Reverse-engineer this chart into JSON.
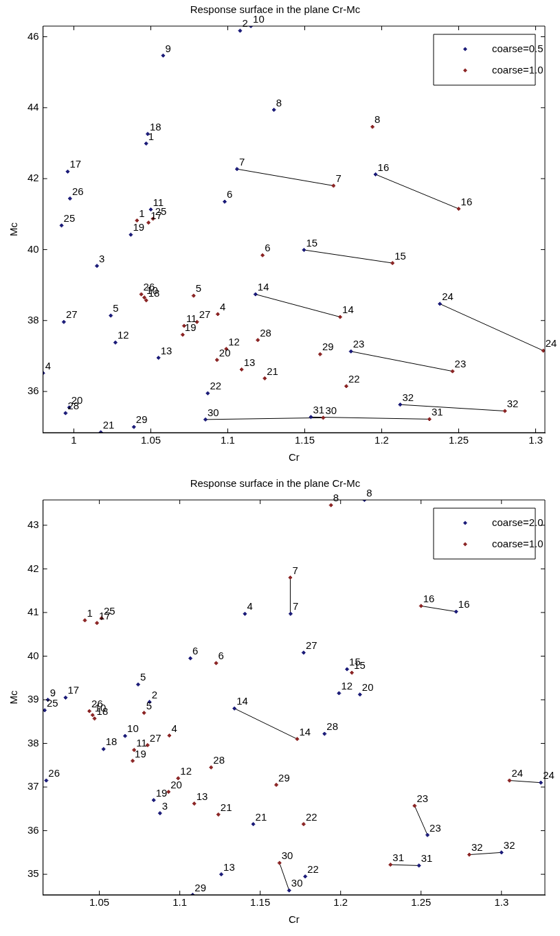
{
  "chart_data": [
    {
      "type": "scatter",
      "title": "Response surface in the plane Cr-Mc",
      "xlabel": "Cr",
      "ylabel": "Mc",
      "xlim": [
        0.98,
        1.306
      ],
      "ylim": [
        34.84,
        46.3
      ],
      "xticks": [
        1,
        1.05,
        1.1,
        1.15,
        1.2,
        1.25,
        1.3
      ],
      "yticks": [
        36,
        38,
        40,
        42,
        44,
        46
      ],
      "legend": "top right",
      "marker": "diamond",
      "series": [
        {
          "name": "coarse=0.5",
          "color": "#1b1b78",
          "x": [
            1.108,
            1.115,
            1.058,
            1.13,
            1.048,
            1.047,
            0.996,
            1.106,
            0.9975,
            1.098,
            1.05,
            0.992,
            1.037,
            1.015,
            1.024,
            0.9935,
            1.027,
            1.055,
            0.98,
            1.118,
            0.997,
            0.9946,
            1.0175,
            1.039,
            1.0855,
            1.087,
            1.154,
            1.212,
            1.1495,
            1.196,
            1.2378,
            1.18
          ],
          "values": [
            46.17,
            46.3,
            45.47,
            43.94,
            43.26,
            42.99,
            42.2,
            42.27,
            41.44,
            41.35,
            41.13,
            40.68,
            40.42,
            39.54,
            38.14,
            37.96,
            37.38,
            36.95,
            36.52,
            38.74,
            35.55,
            35.39,
            34.85,
            35.0,
            35.21,
            35.95,
            35.28,
            35.63,
            39.99,
            42.12,
            38.47,
            37.13
          ]
        },
        {
          "name": "coarse=1.0",
          "color": "#8b2525",
          "x": [
            1.194,
            1.1687,
            1.25,
            1.1226,
            1.207,
            1.173,
            1.305,
            1.246,
            1.16,
            1.177,
            1.124,
            1.1195,
            1.109,
            1.099,
            1.093,
            1.0935,
            1.0778,
            1.08,
            1.0716,
            1.0707,
            1.0438,
            1.0458,
            1.047,
            1.041,
            1.0485,
            1.0514,
            1.162,
            1.231,
            1.28
          ],
          "values": [
            43.46,
            41.8,
            41.15,
            39.84,
            39.62,
            38.1,
            37.15,
            36.57,
            37.05,
            36.15,
            36.37,
            37.45,
            36.62,
            37.2,
            36.89,
            38.18,
            38.7,
            37.96,
            37.85,
            37.6,
            38.74,
            38.65,
            38.57,
            40.82,
            40.76,
            40.87,
            35.26,
            35.22,
            35.45
          ]
        },
        {
          "type": "line",
          "marker": "none",
          "color": "#000000",
          "x": [
            1.106,
            1.1687
          ],
          "values": [
            42.27,
            41.8
          ]
        },
        {
          "type": "line",
          "marker": "none",
          "color": "#000000",
          "x": [
            1.196,
            1.25
          ],
          "values": [
            42.12,
            41.15
          ]
        },
        {
          "type": "line",
          "marker": "none",
          "color": "#000000",
          "x": [
            1.1495,
            1.207
          ],
          "values": [
            39.99,
            39.62
          ]
        },
        {
          "type": "line",
          "marker": "none",
          "color": "#000000",
          "x": [
            1.118,
            1.173
          ],
          "values": [
            38.74,
            38.1
          ]
        },
        {
          "type": "line",
          "marker": "none",
          "color": "#000000",
          "x": [
            1.2378,
            1.305
          ],
          "values": [
            38.47,
            37.15
          ]
        },
        {
          "type": "line",
          "marker": "none",
          "color": "#000000",
          "x": [
            1.18,
            1.246
          ],
          "values": [
            37.13,
            36.57
          ]
        },
        {
          "type": "line",
          "marker": "none",
          "color": "#000000",
          "x": [
            1.212,
            1.28
          ],
          "values": [
            35.63,
            35.45
          ]
        },
        {
          "type": "line",
          "marker": "none",
          "color": "#000000",
          "x": [
            1.0855,
            1.162
          ],
          "values": [
            35.21,
            35.26
          ]
        },
        {
          "type": "line",
          "marker": "none",
          "color": "#000000",
          "x": [
            1.154,
            1.231
          ],
          "values": [
            35.28,
            35.22
          ]
        }
      ],
      "annotations": [
        {
          "text": "2",
          "x": 1.108,
          "y": 46.17
        },
        {
          "text": "10",
          "x": 1.115,
          "y": 46.3
        },
        {
          "text": "9",
          "x": 1.058,
          "y": 45.47
        },
        {
          "text": "8",
          "x": 1.13,
          "y": 43.94
        },
        {
          "text": "18",
          "x": 1.048,
          "y": 43.26
        },
        {
          "text": "1",
          "x": 1.047,
          "y": 42.99
        },
        {
          "text": "17",
          "x": 0.996,
          "y": 42.2
        },
        {
          "text": "7",
          "x": 1.106,
          "y": 42.27
        },
        {
          "text": "26",
          "x": 0.9975,
          "y": 41.44
        },
        {
          "text": "6",
          "x": 1.098,
          "y": 41.35
        },
        {
          "text": "11",
          "x": 1.05,
          "y": 41.13
        },
        {
          "text": "25",
          "x": 0.992,
          "y": 40.68
        },
        {
          "text": "19",
          "x": 1.037,
          "y": 40.42
        },
        {
          "text": "3",
          "x": 1.015,
          "y": 39.54
        },
        {
          "text": "5",
          "x": 1.024,
          "y": 38.14
        },
        {
          "text": "27",
          "x": 0.9935,
          "y": 37.96
        },
        {
          "text": "12",
          "x": 1.027,
          "y": 37.38
        },
        {
          "text": "13",
          "x": 1.055,
          "y": 36.95
        },
        {
          "text": "4",
          "x": 0.98,
          "y": 36.52
        },
        {
          "text": "14",
          "x": 1.118,
          "y": 38.74
        },
        {
          "text": "20",
          "x": 0.997,
          "y": 35.55
        },
        {
          "text": "28",
          "x": 0.9946,
          "y": 35.39
        },
        {
          "text": "21",
          "x": 1.0175,
          "y": 34.85
        },
        {
          "text": "29",
          "x": 1.039,
          "y": 35.0
        },
        {
          "text": "30",
          "x": 1.0855,
          "y": 35.21
        },
        {
          "text": "22",
          "x": 1.087,
          "y": 35.95
        },
        {
          "text": "31",
          "x": 1.154,
          "y": 35.28
        },
        {
          "text": "32",
          "x": 1.212,
          "y": 35.63
        },
        {
          "text": "15",
          "x": 1.1495,
          "y": 39.99
        },
        {
          "text": "16",
          "x": 1.196,
          "y": 42.12
        },
        {
          "text": "24",
          "x": 1.2378,
          "y": 38.47
        },
        {
          "text": "23",
          "x": 1.18,
          "y": 37.13
        },
        {
          "text": "8",
          "x": 1.194,
          "y": 43.46
        },
        {
          "text": "7",
          "x": 1.1687,
          "y": 41.8
        },
        {
          "text": "16",
          "x": 1.25,
          "y": 41.15
        },
        {
          "text": "6",
          "x": 1.1226,
          "y": 39.84
        },
        {
          "text": "15",
          "x": 1.207,
          "y": 39.62
        },
        {
          "text": "14",
          "x": 1.173,
          "y": 38.1
        },
        {
          "text": "24",
          "x": 1.305,
          "y": 37.15
        },
        {
          "text": "23",
          "x": 1.246,
          "y": 36.57
        },
        {
          "text": "29",
          "x": 1.16,
          "y": 37.05
        },
        {
          "text": "22",
          "x": 1.177,
          "y": 36.15
        },
        {
          "text": "21",
          "x": 1.124,
          "y": 36.37
        },
        {
          "text": "28",
          "x": 1.1195,
          "y": 37.45
        },
        {
          "text": "13",
          "x": 1.109,
          "y": 36.62
        },
        {
          "text": "12",
          "x": 1.099,
          "y": 37.2
        },
        {
          "text": "20",
          "x": 1.093,
          "y": 36.89
        },
        {
          "text": "4",
          "x": 1.0935,
          "y": 38.18
        },
        {
          "text": "5",
          "x": 1.0778,
          "y": 38.7
        },
        {
          "text": "27",
          "x": 1.08,
          "y": 37.96
        },
        {
          "text": "11",
          "x": 1.0716,
          "y": 37.85
        },
        {
          "text": "19",
          "x": 1.0707,
          "y": 37.6
        },
        {
          "text": "26",
          "x": 1.0438,
          "y": 38.74
        },
        {
          "text": "10",
          "x": 1.0458,
          "y": 38.65
        },
        {
          "text": "18",
          "x": 1.047,
          "y": 38.57
        },
        {
          "text": "1",
          "x": 1.041,
          "y": 40.82
        },
        {
          "text": "17",
          "x": 1.0485,
          "y": 40.76
        },
        {
          "text": "25",
          "x": 1.0514,
          "y": 40.87
        },
        {
          "text": "30",
          "x": 1.162,
          "y": 35.26
        },
        {
          "text": "31",
          "x": 1.231,
          "y": 35.22
        },
        {
          "text": "32",
          "x": 1.28,
          "y": 35.45
        }
      ]
    },
    {
      "type": "scatter",
      "title": "Response surface in the plane Cr-Mc",
      "xlabel": "Cr",
      "ylabel": "Mc",
      "xlim": [
        1.015,
        1.327
      ],
      "ylim": [
        34.53,
        43.58
      ],
      "xticks": [
        1.05,
        1.1,
        1.15,
        1.2,
        1.25,
        1.3
      ],
      "yticks": [
        35,
        36,
        37,
        38,
        39,
        40,
        41,
        42,
        43
      ],
      "legend": "top right",
      "marker": "diamond",
      "series": [
        {
          "name": "coarse=2.0",
          "color": "#1b1b78",
          "x": [
            1.2148,
            1.1689,
            1.2718,
            1.177,
            1.204,
            1.1405,
            1.1066,
            1.0741,
            1.018,
            1.029,
            1.016,
            1.017,
            1.066,
            1.0526,
            1.0812,
            1.0838,
            1.0877,
            1.134,
            1.19,
            1.199,
            1.212,
            1.1457,
            1.178,
            1.1258,
            1.108,
            1.168,
            1.2487,
            1.3,
            1.254,
            1.3245
          ],
          "values": [
            43.58,
            40.97,
            41.02,
            40.08,
            39.7,
            40.97,
            39.95,
            39.35,
            39.0,
            39.05,
            38.76,
            37.15,
            38.17,
            37.87,
            38.95,
            36.7,
            36.4,
            38.8,
            38.22,
            39.15,
            39.12,
            36.15,
            34.95,
            35.0,
            34.53,
            34.63,
            35.2,
            35.5,
            35.9,
            37.1
          ]
        },
        {
          "name": "coarse=1.0",
          "color": "#8b2525",
          "x": [
            1.194,
            1.1687,
            1.25,
            1.1226,
            1.207,
            1.173,
            1.305,
            1.246,
            1.16,
            1.177,
            1.124,
            1.1195,
            1.109,
            1.099,
            1.093,
            1.0935,
            1.0778,
            1.08,
            1.0716,
            1.0707,
            1.0438,
            1.0458,
            1.047,
            1.041,
            1.0485,
            1.0514,
            1.162,
            1.231,
            1.28
          ],
          "values": [
            43.46,
            41.8,
            41.15,
            39.84,
            39.62,
            38.1,
            37.15,
            36.57,
            37.05,
            36.15,
            36.37,
            37.45,
            36.62,
            37.2,
            36.89,
            38.18,
            38.7,
            37.96,
            37.85,
            37.6,
            38.74,
            38.65,
            38.57,
            40.82,
            40.76,
            40.87,
            35.26,
            35.22,
            35.45
          ]
        },
        {
          "type": "line",
          "marker": "none",
          "color": "#000000",
          "x": [
            1.1689,
            1.1687
          ],
          "values": [
            40.97,
            41.8
          ]
        },
        {
          "type": "line",
          "marker": "none",
          "color": "#000000",
          "x": [
            1.2718,
            1.25
          ],
          "values": [
            41.02,
            41.15
          ]
        },
        {
          "type": "line",
          "marker": "none",
          "color": "#000000",
          "x": [
            1.134,
            1.173
          ],
          "values": [
            38.8,
            38.1
          ]
        },
        {
          "type": "line",
          "marker": "none",
          "color": "#000000",
          "x": [
            1.168,
            1.162
          ],
          "values": [
            34.63,
            35.26
          ]
        },
        {
          "type": "line",
          "marker": "none",
          "color": "#000000",
          "x": [
            1.2487,
            1.231
          ],
          "values": [
            35.2,
            35.22
          ]
        },
        {
          "type": "line",
          "marker": "none",
          "color": "#000000",
          "x": [
            1.3,
            1.28
          ],
          "values": [
            35.5,
            35.45
          ]
        },
        {
          "type": "line",
          "marker": "none",
          "color": "#000000",
          "x": [
            1.254,
            1.246
          ],
          "values": [
            35.9,
            36.57
          ]
        },
        {
          "type": "line",
          "marker": "none",
          "color": "#000000",
          "x": [
            1.3245,
            1.305
          ],
          "values": [
            37.1,
            37.15
          ]
        }
      ],
      "annotations": [
        {
          "text": "8",
          "x": 1.2148,
          "y": 43.58
        },
        {
          "text": "7",
          "x": 1.1689,
          "y": 40.97
        },
        {
          "text": "16",
          "x": 1.2718,
          "y": 41.02
        },
        {
          "text": "27",
          "x": 1.177,
          "y": 40.08
        },
        {
          "text": "15",
          "x": 1.204,
          "y": 39.7
        },
        {
          "text": "4",
          "x": 1.1405,
          "y": 40.97
        },
        {
          "text": "6",
          "x": 1.1066,
          "y": 39.95
        },
        {
          "text": "5",
          "x": 1.0741,
          "y": 39.35
        },
        {
          "text": "9",
          "x": 1.018,
          "y": 39.0
        },
        {
          "text": "17",
          "x": 1.029,
          "y": 39.05
        },
        {
          "text": "25",
          "x": 1.016,
          "y": 38.76
        },
        {
          "text": "26",
          "x": 1.017,
          "y": 37.15
        },
        {
          "text": "10",
          "x": 1.066,
          "y": 38.17
        },
        {
          "text": "18",
          "x": 1.0526,
          "y": 37.87
        },
        {
          "text": "2",
          "x": 1.0812,
          "y": 38.95
        },
        {
          "text": "19",
          "x": 1.0838,
          "y": 36.7
        },
        {
          "text": "3",
          "x": 1.0877,
          "y": 36.4
        },
        {
          "text": "14",
          "x": 1.134,
          "y": 38.8
        },
        {
          "text": "28",
          "x": 1.19,
          "y": 38.22
        },
        {
          "text": "12",
          "x": 1.199,
          "y": 39.15
        },
        {
          "text": "20",
          "x": 1.212,
          "y": 39.12
        },
        {
          "text": "21",
          "x": 1.1457,
          "y": 36.15
        },
        {
          "text": "22",
          "x": 1.178,
          "y": 34.95
        },
        {
          "text": "13",
          "x": 1.1258,
          "y": 35.0
        },
        {
          "text": "29",
          "x": 1.108,
          "y": 34.53
        },
        {
          "text": "30",
          "x": 1.168,
          "y": 34.63
        },
        {
          "text": "31",
          "x": 1.2487,
          "y": 35.2
        },
        {
          "text": "32",
          "x": 1.3,
          "y": 35.5
        },
        {
          "text": "23",
          "x": 1.254,
          "y": 35.9
        },
        {
          "text": "24",
          "x": 1.3245,
          "y": 37.1
        },
        {
          "text": "8",
          "x": 1.194,
          "y": 43.46
        },
        {
          "text": "7",
          "x": 1.1687,
          "y": 41.8
        },
        {
          "text": "16",
          "x": 1.25,
          "y": 41.15
        },
        {
          "text": "6",
          "x": 1.1226,
          "y": 39.84
        },
        {
          "text": "15",
          "x": 1.207,
          "y": 39.62
        },
        {
          "text": "14",
          "x": 1.173,
          "y": 38.1
        },
        {
          "text": "24",
          "x": 1.305,
          "y": 37.15
        },
        {
          "text": "23",
          "x": 1.246,
          "y": 36.57
        },
        {
          "text": "29",
          "x": 1.16,
          "y": 37.05
        },
        {
          "text": "22",
          "x": 1.177,
          "y": 36.15
        },
        {
          "text": "21",
          "x": 1.124,
          "y": 36.37
        },
        {
          "text": "28",
          "x": 1.1195,
          "y": 37.45
        },
        {
          "text": "13",
          "x": 1.109,
          "y": 36.62
        },
        {
          "text": "12",
          "x": 1.099,
          "y": 37.2
        },
        {
          "text": "20",
          "x": 1.093,
          "y": 36.89
        },
        {
          "text": "4",
          "x": 1.0935,
          "y": 38.18
        },
        {
          "text": "5",
          "x": 1.0778,
          "y": 38.7
        },
        {
          "text": "27",
          "x": 1.08,
          "y": 37.96
        },
        {
          "text": "11",
          "x": 1.0716,
          "y": 37.85
        },
        {
          "text": "19",
          "x": 1.0707,
          "y": 37.6
        },
        {
          "text": "26",
          "x": 1.0438,
          "y": 38.74
        },
        {
          "text": "10",
          "x": 1.0458,
          "y": 38.65
        },
        {
          "text": "18",
          "x": 1.047,
          "y": 38.57
        },
        {
          "text": "1",
          "x": 1.041,
          "y": 40.82
        },
        {
          "text": "17",
          "x": 1.0485,
          "y": 40.76
        },
        {
          "text": "25",
          "x": 1.0514,
          "y": 40.87
        },
        {
          "text": "30",
          "x": 1.162,
          "y": 35.26
        },
        {
          "text": "31",
          "x": 1.231,
          "y": 35.22
        },
        {
          "text": "32",
          "x": 1.28,
          "y": 35.45
        }
      ]
    }
  ]
}
